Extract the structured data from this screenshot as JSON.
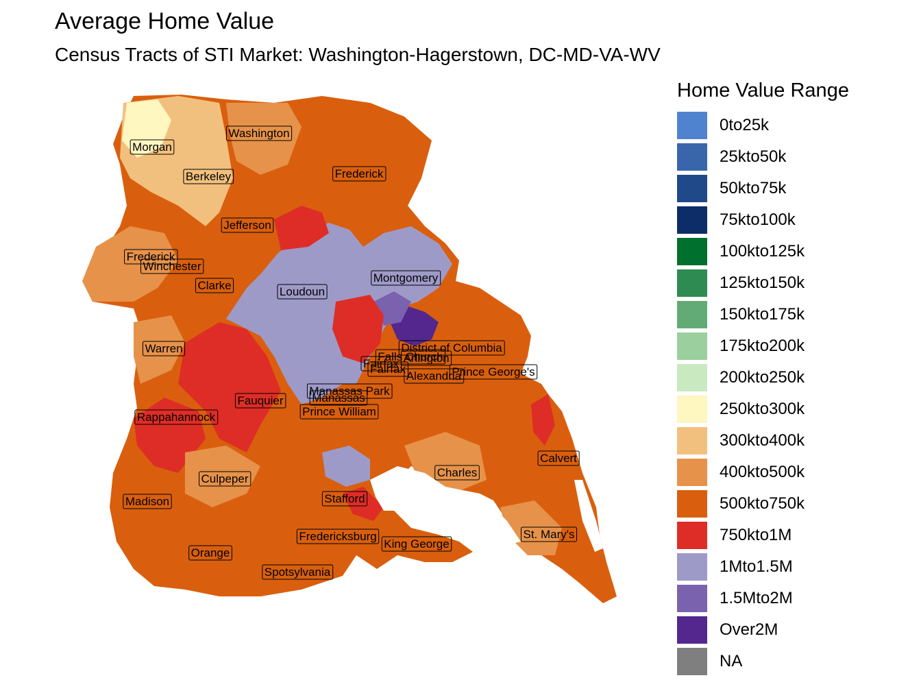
{
  "title": "Average Home Value",
  "subtitle": "Census Tracts of STI Market: Washington-Hagerstown, DC-MD-VA-WV",
  "legend": {
    "title": "Home Value Range",
    "items": [
      {
        "label": "0to25k",
        "color": "#5083cf"
      },
      {
        "label": "25kto50k",
        "color": "#3966ab"
      },
      {
        "label": "50kto75k",
        "color": "#1f4988"
      },
      {
        "label": "75kto100k",
        "color": "#0c2d67"
      },
      {
        "label": "100kto125k",
        "color": "#00702f"
      },
      {
        "label": "125kto150k",
        "color": "#2e8b51"
      },
      {
        "label": "150kto175k",
        "color": "#62ab77"
      },
      {
        "label": "175kto200k",
        "color": "#9bcf9d"
      },
      {
        "label": "200kto250k",
        "color": "#c9e9c1"
      },
      {
        "label": "250kto300k",
        "color": "#fff6c0"
      },
      {
        "label": "300kto400k",
        "color": "#f2c07e"
      },
      {
        "label": "400kto500k",
        "color": "#e6924a"
      },
      {
        "label": "500kto750k",
        "color": "#d95f0e"
      },
      {
        "label": "750kto1M",
        "color": "#de2d26"
      },
      {
        "label": "1Mto1.5M",
        "color": "#9e9ac8"
      },
      {
        "label": "1.5Mto2M",
        "color": "#7b62ae"
      },
      {
        "label": "Over2M",
        "color": "#54278f"
      },
      {
        "label": "NA",
        "color": "#7f7f7f"
      }
    ]
  },
  "county_labels": [
    "Washington",
    "Morgan",
    "Berkeley",
    "Frederick",
    "Jefferson",
    "Frederick",
    "Winchester",
    "Clarke",
    "Loudoun",
    "Montgomery",
    "Warren",
    "District of Columbia",
    "Falls Church",
    "Arlington",
    "Fairfax",
    "Fairfax",
    "Alexandria",
    "Prince George's",
    "Manassas Park",
    "Manassas",
    "Fauquier",
    "Prince William",
    "Rappahannock",
    "Culpeper",
    "Madison",
    "Charles",
    "Calvert",
    "Stafford",
    "Fredericksburg",
    "King George",
    "St. Mary's",
    "Orange",
    "Spotsylvania"
  ]
}
